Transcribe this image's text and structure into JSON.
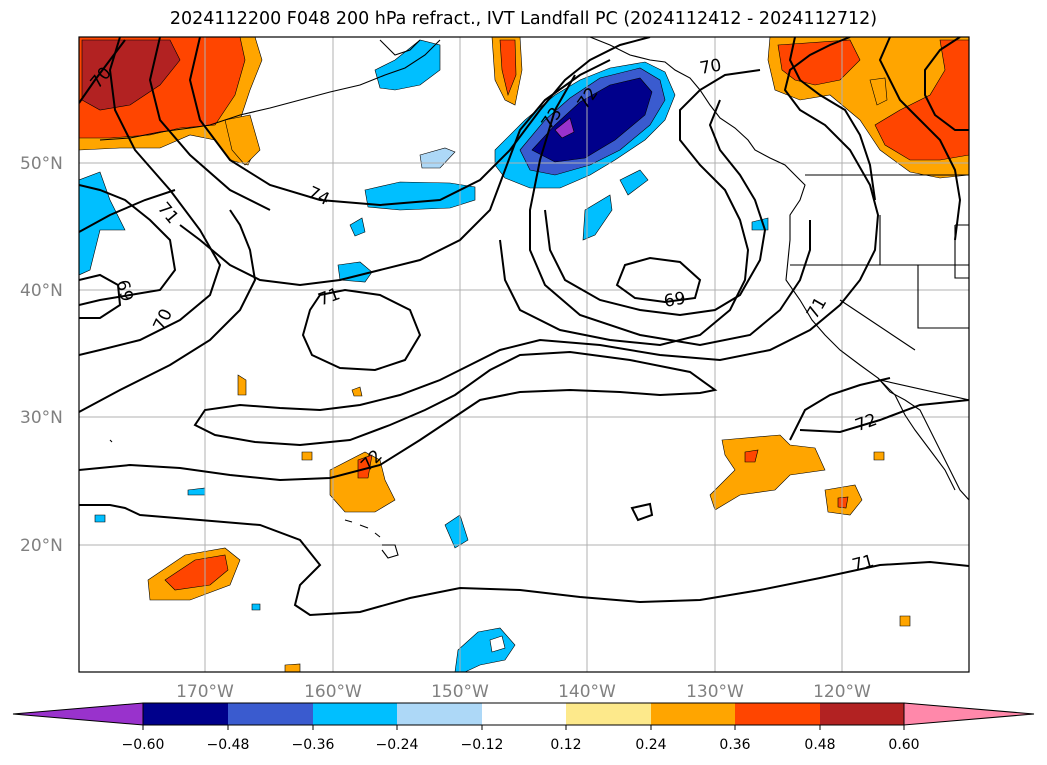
{
  "title": "2024112200 F048 200 hPa refract., IVT Landfall PC (2024112412 - 2024112712)",
  "map": {
    "lon_labels": [
      "170°W",
      "160°W",
      "150°W",
      "140°W",
      "130°W",
      "120°W"
    ],
    "lat_labels": [
      "50°N",
      "40°N",
      "30°N",
      "20°N"
    ],
    "contour_labels": [
      "70",
      "71",
      "74",
      "73",
      "72",
      "69",
      "70",
      "71",
      "69",
      "71",
      "72",
      "72",
      "71"
    ]
  },
  "colorbar": {
    "ticks": [
      "−0.60",
      "−0.48",
      "−0.36",
      "−0.24",
      "−0.12",
      "0.12",
      "0.24",
      "0.36",
      "0.48",
      "0.60"
    ],
    "colors": [
      "#9932cc",
      "#00008b",
      "#3a5bcf",
      "#00bfff",
      "#add8f7",
      "#ffffff",
      "#fde98b",
      "#ffa500",
      "#ff4500",
      "#b22222",
      "#ff88aa"
    ]
  }
}
